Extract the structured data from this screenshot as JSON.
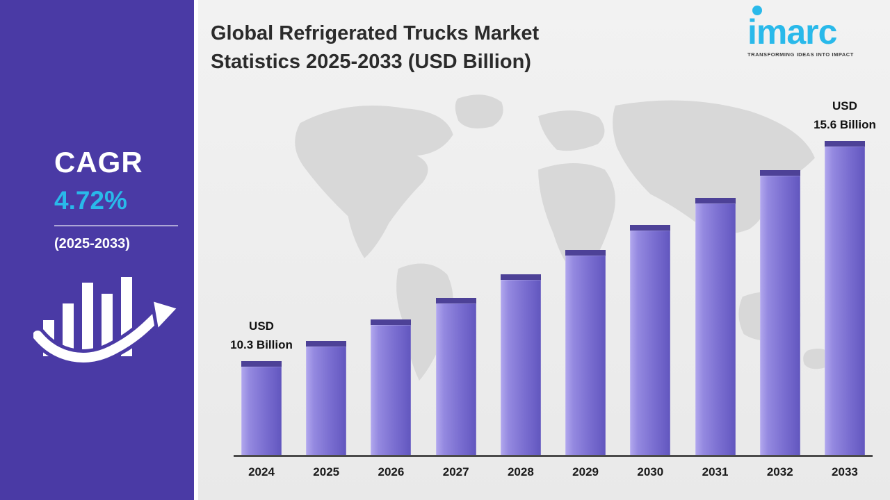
{
  "sidebar": {
    "cagr_label": "CAGR",
    "cagr_value": "4.72%",
    "period": "(2025-2033)"
  },
  "header": {
    "title_line1": "Global Refrigerated Trucks Market",
    "title_line2": "Statistics 2025-2033 (USD Billion)"
  },
  "logo": {
    "brand": "imarc",
    "tagline": "TRANSFORMING IDEAS INTO IMPACT"
  },
  "colors": {
    "sidebar_bg": "#4a3aa5",
    "accent_cyan": "#29b9ea",
    "bar_fill": "#7d71d2",
    "bar_top_cap": "#4d4197",
    "map_gray": "#d8d8d8",
    "title_text": "#2b2b2b"
  },
  "chart_data": {
    "type": "bar",
    "title": "Global Refrigerated Trucks Market Statistics 2025-2033 (USD Billion)",
    "unit": "USD Billion",
    "categories": [
      "2024",
      "2025",
      "2026",
      "2027",
      "2028",
      "2029",
      "2030",
      "2031",
      "2032",
      "2033"
    ],
    "values": [
      10.3,
      10.79,
      11.3,
      11.83,
      12.39,
      12.97,
      13.58,
      14.23,
      14.9,
      15.6
    ],
    "baseline_value": 8,
    "max_value": 15.6,
    "annotations": [
      {
        "index": 0,
        "lines": [
          "USD",
          "10.3 Billion"
        ]
      },
      {
        "index": 9,
        "lines": [
          "USD",
          "15.6 Billion"
        ]
      }
    ],
    "legend": "none",
    "grid": false
  }
}
